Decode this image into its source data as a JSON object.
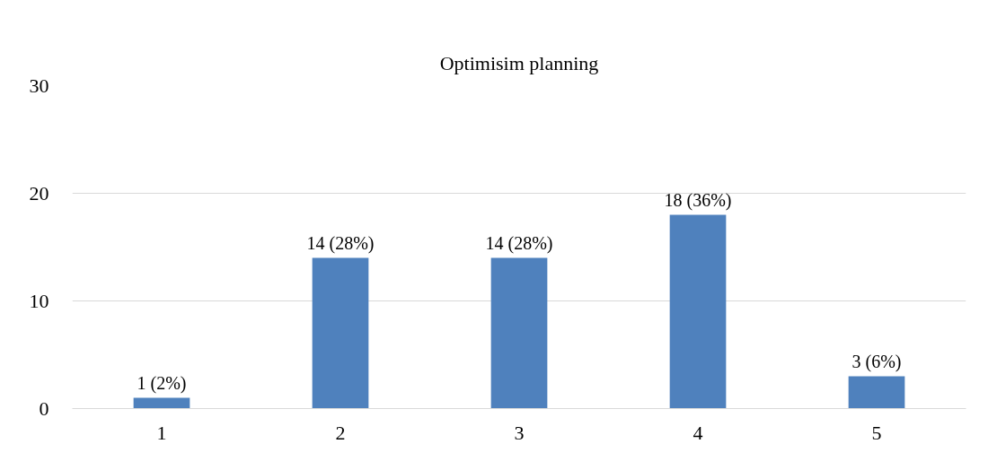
{
  "chart_data": {
    "type": "bar",
    "title": "Optimisim planning",
    "categories": [
      "1",
      "2",
      "3",
      "4",
      "5"
    ],
    "values": [
      1,
      14,
      14,
      18,
      3
    ],
    "value_labels": [
      "1 (2%)",
      "14 (28%)",
      "14 (28%)",
      "18 (36%)",
      "3 (6%)"
    ],
    "color": "#4f81bd",
    "ylim": [
      0,
      30
    ],
    "yticks": [
      0,
      10,
      20,
      30
    ],
    "grid": "y"
  }
}
